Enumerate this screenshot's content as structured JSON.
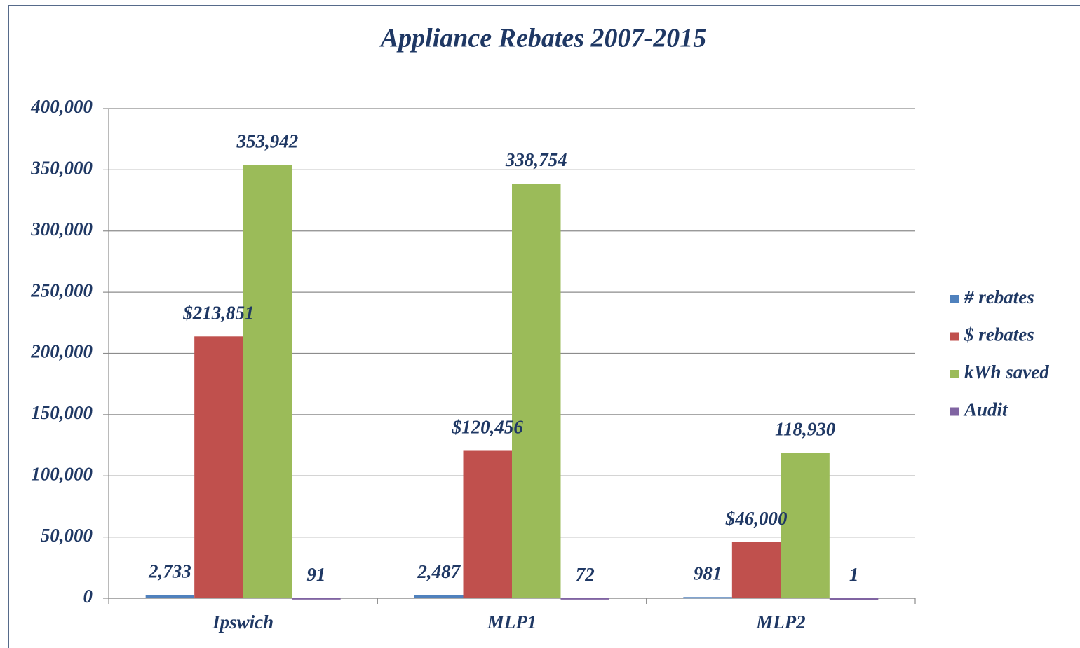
{
  "chart_data": {
    "type": "bar",
    "title": "Appliance Rebates 2007-2015",
    "categories": [
      "Ipswich",
      "MLP1",
      "MLP2"
    ],
    "series": [
      {
        "name": "# rebates",
        "color": "#4f81bd",
        "values": [
          2733,
          2487,
          981
        ],
        "value_labels": [
          "2,733",
          "2,487",
          "981"
        ]
      },
      {
        "name": "$ rebates",
        "color": "#c0504d",
        "values": [
          213851,
          120456,
          46000
        ],
        "value_labels": [
          "$213,851",
          "$120,456",
          "$46,000"
        ]
      },
      {
        "name": "kWh saved",
        "color": "#9bbb59",
        "values": [
          353942,
          338754,
          118930
        ],
        "value_labels": [
          "353,942",
          "338,754",
          "118,930"
        ]
      },
      {
        "name": "Audit",
        "color": "#8064a2",
        "values": [
          91,
          72,
          1
        ],
        "value_labels": [
          "91",
          "72",
          "1"
        ]
      }
    ],
    "ylim": [
      0,
      400000
    ],
    "yticks": [
      0,
      {
        "value": 50000,
        "label": "50,000"
      },
      {
        "value": 100000,
        "label": "100,000"
      },
      {
        "value": 150000,
        "label": "150,000"
      },
      {
        "value": 200000,
        "label": "200,000"
      },
      {
        "value": 250000,
        "label": "250,000"
      },
      {
        "value": 300000,
        "label": "300,000"
      },
      {
        "value": 350000,
        "label": "350,000"
      },
      {
        "value": 400000,
        "label": "400,000"
      }
    ],
    "grid": true,
    "legend": "right"
  }
}
